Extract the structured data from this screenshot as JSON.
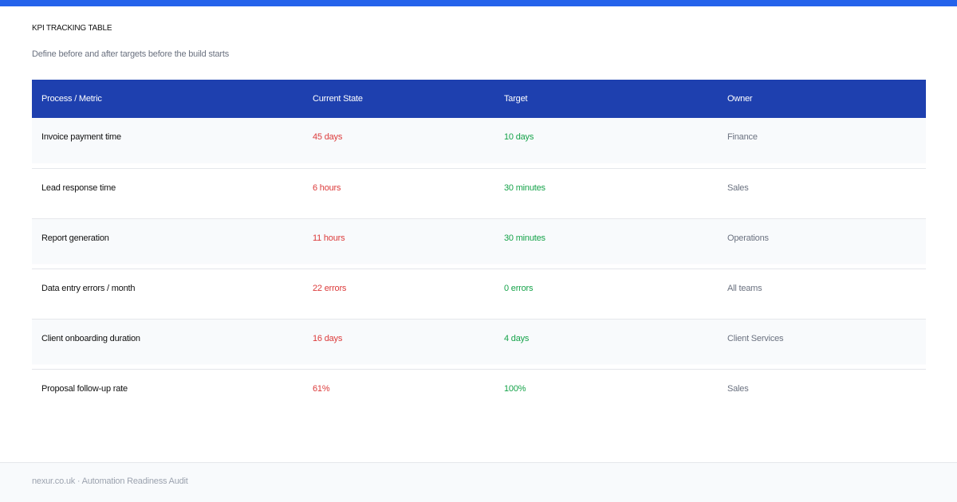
{
  "header": {
    "title": "KPI TRACKING TABLE",
    "subtitle": "Define before and after targets before the build starts"
  },
  "table": {
    "columns": [
      "Process / Metric",
      "Current State",
      "Target",
      "Owner"
    ],
    "rows": [
      [
        "Invoice payment time",
        "45 days",
        "10 days",
        "Finance"
      ],
      [
        "Lead response time",
        "6 hours",
        "30 minutes",
        "Sales"
      ],
      [
        "Report generation",
        "11 hours",
        "30 minutes",
        "Operations"
      ],
      [
        "Data entry errors / month",
        "22 errors",
        "0 errors",
        "All teams"
      ],
      [
        "Client onboarding duration",
        "16 days",
        "4 days",
        "Client Services"
      ],
      [
        "Proposal follow-up rate",
        "61%",
        "100%",
        "Sales"
      ]
    ]
  },
  "footer": {
    "text": "nexur.co.uk · Automation Readiness Audit"
  }
}
